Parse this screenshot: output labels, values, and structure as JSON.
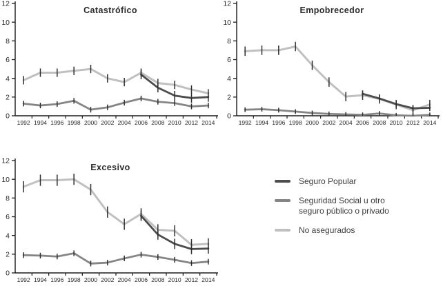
{
  "figure": {
    "background": "#ffffff",
    "panel_titles": [
      "Catastrófico",
      "Empobrecedor",
      "Excesivo"
    ]
  },
  "colors": {
    "seguro_popular": "#4d4d4d",
    "seguridad_social": "#858585",
    "no_asegurados": "#c0c0c0",
    "error_bar": "#2e2e2e",
    "axis": "#1a1a1a",
    "text": "#2b2b2b"
  },
  "legend": {
    "items": [
      {
        "key": "seguro_popular",
        "label": "Seguro Popular"
      },
      {
        "key": "seguridad_social",
        "label": "Seguridad Social u otro seguro público o privado"
      },
      {
        "key": "no_asegurados",
        "label": "No asegurados"
      }
    ]
  },
  "chart_data": [
    {
      "type": "line",
      "title": "Catastrófico",
      "xlabel": "",
      "ylabel": "",
      "x": [
        1992,
        1994,
        1996,
        1998,
        2000,
        2002,
        2004,
        2006,
        2008,
        2010,
        2012,
        2014
      ],
      "ylim": [
        0,
        12
      ],
      "yticks": [
        0,
        2,
        4,
        6,
        8,
        10,
        12
      ],
      "grid": false,
      "error_bars": true,
      "series": [
        {
          "name": "No asegurados",
          "key": "no_asegurados",
          "values": [
            3.8,
            4.6,
            4.6,
            4.8,
            5.0,
            4.0,
            3.6,
            4.6,
            3.5,
            3.3,
            2.8,
            2.4
          ],
          "ci": 0.45
        },
        {
          "name": "Seguridad Social u otro seguro público o privado",
          "key": "seguridad_social",
          "values": [
            1.3,
            1.1,
            1.25,
            1.6,
            0.65,
            0.9,
            1.4,
            1.85,
            1.5,
            1.35,
            1.0,
            1.1
          ],
          "ci": 0.3
        },
        {
          "name": "Seguro Popular",
          "key": "seguro_popular",
          "values": [
            null,
            null,
            null,
            null,
            null,
            null,
            null,
            4.4,
            3.0,
            2.15,
            1.9,
            2.0
          ],
          "ci": 0.5
        }
      ]
    },
    {
      "type": "line",
      "title": "Empobrecedor",
      "xlabel": "",
      "ylabel": "",
      "x": [
        1992,
        1994,
        1996,
        1998,
        2000,
        2002,
        2004,
        2006,
        2008,
        2010,
        2012,
        2014
      ],
      "ylim": [
        0,
        12
      ],
      "yticks": [
        0,
        2,
        4,
        6,
        8,
        10,
        12
      ],
      "grid": false,
      "error_bars": true,
      "series": [
        {
          "name": "No asegurados",
          "key": "no_asegurados",
          "values": [
            6.9,
            7.0,
            7.0,
            7.4,
            5.4,
            3.6,
            2.05,
            2.2,
            1.8,
            1.2,
            0.6,
            1.2
          ],
          "ci": 0.5
        },
        {
          "name": "Seguridad Social u otro seguro público o privado",
          "key": "seguridad_social",
          "values": [
            0.65,
            0.7,
            0.6,
            0.45,
            0.3,
            0.2,
            0.15,
            0.1,
            0.25,
            0.05,
            0.0,
            0.1
          ],
          "ci": 0.25
        },
        {
          "name": "Seguro Popular",
          "key": "seguro_popular",
          "values": [
            null,
            null,
            null,
            null,
            null,
            null,
            null,
            2.35,
            1.85,
            1.25,
            0.8,
            0.85
          ],
          "ci": 0.35
        }
      ]
    },
    {
      "type": "line",
      "title": "Excesivo",
      "xlabel": "",
      "ylabel": "",
      "x": [
        1992,
        1994,
        1996,
        1998,
        2000,
        2002,
        2004,
        2006,
        2008,
        2010,
        2012,
        2014
      ],
      "ylim": [
        0,
        12
      ],
      "yticks": [
        0,
        2,
        4,
        6,
        8,
        10,
        12
      ],
      "grid": false,
      "error_bars": true,
      "series": [
        {
          "name": "No asegurados",
          "key": "no_asegurados",
          "values": [
            9.2,
            9.9,
            9.9,
            10.0,
            8.9,
            6.5,
            5.2,
            6.3,
            4.6,
            4.5,
            3.0,
            3.1
          ],
          "ci": 0.6
        },
        {
          "name": "Seguridad Social u otro seguro público o privado",
          "key": "seguridad_social",
          "values": [
            1.9,
            1.85,
            1.75,
            2.1,
            1.0,
            1.1,
            1.55,
            1.95,
            1.7,
            1.4,
            1.05,
            1.2
          ],
          "ci": 0.3
        },
        {
          "name": "Seguro Popular",
          "key": "seguro_popular",
          "values": [
            null,
            null,
            null,
            null,
            null,
            null,
            null,
            6.1,
            4.1,
            3.1,
            2.55,
            2.6
          ],
          "ci": 0.55
        }
      ]
    }
  ]
}
